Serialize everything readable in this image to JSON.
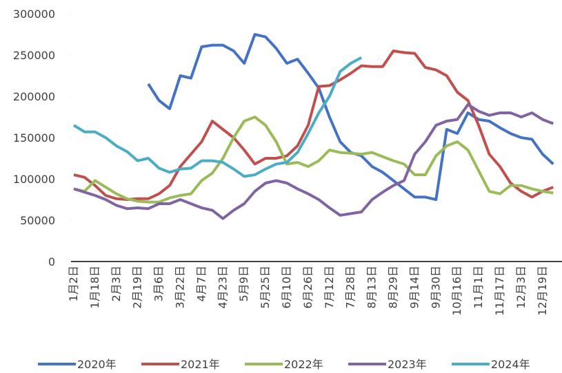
{
  "chart_data": {
    "type": "line",
    "categories": [
      "1月2日",
      null,
      "1月18日",
      null,
      "2月3日",
      null,
      "2月19日",
      null,
      "3月6日",
      null,
      "3月22日",
      null,
      "4月7日",
      null,
      "4月23日",
      null,
      "5月9日",
      null,
      "5月25日",
      null,
      "6月10日",
      null,
      "6月26日",
      null,
      "7月12日",
      null,
      "7月28日",
      null,
      "8月13日",
      null,
      "8月29日",
      null,
      "9月14日",
      null,
      "9月30日",
      null,
      "10月16日",
      null,
      "11月1日",
      null,
      "11月17日",
      null,
      "12月3日",
      null,
      "12月19日",
      null
    ],
    "ylim": [
      0,
      300000
    ],
    "yticks": [
      0,
      50000,
      100000,
      150000,
      200000,
      250000,
      300000
    ],
    "legend": "bottom",
    "series": [
      {
        "name": "2020年",
        "color": "#4472c4",
        "values": [
          null,
          null,
          null,
          null,
          null,
          null,
          null,
          215000,
          195000,
          185000,
          225000,
          222000,
          260000,
          262000,
          262000,
          255000,
          240000,
          275000,
          272000,
          258000,
          240000,
          245000,
          228000,
          210000,
          175000,
          145000,
          132000,
          128000,
          115000,
          108000,
          98000,
          88000,
          78000,
          78000,
          75000,
          160000,
          155000,
          180000,
          172000,
          170000,
          162000,
          155000,
          150000,
          148000,
          130000,
          118000
        ]
      },
      {
        "name": "2021年",
        "color": "#c0504d",
        "values": [
          105000,
          102000,
          92000,
          80000,
          76000,
          75000,
          76000,
          76000,
          82000,
          92000,
          115000,
          130000,
          145000,
          170000,
          160000,
          150000,
          135000,
          118000,
          125000,
          125000,
          128000,
          140000,
          165000,
          212000,
          213000,
          220000,
          228000,
          237000,
          236000,
          236000,
          255000,
          253000,
          252000,
          235000,
          232000,
          225000,
          205000,
          195000,
          165000,
          130000,
          115000,
          95000,
          85000,
          78000,
          85000,
          90000
        ]
      },
      {
        "name": "2022年",
        "color": "#9bbb59",
        "values": [
          88000,
          85000,
          98000,
          90000,
          82000,
          76000,
          73000,
          72000,
          72000,
          77000,
          80000,
          82000,
          98000,
          107000,
          125000,
          150000,
          170000,
          175000,
          165000,
          145000,
          118000,
          120000,
          115000,
          122000,
          135000,
          132000,
          131000,
          130000,
          132000,
          127000,
          122000,
          118000,
          105000,
          105000,
          128000,
          140000,
          145000,
          135000,
          110000,
          85000,
          82000,
          92000,
          92000,
          88000,
          85000,
          83000
        ]
      },
      {
        "name": "2023年",
        "color": "#8064a2",
        "values": [
          88000,
          84000,
          80000,
          75000,
          68000,
          64000,
          65000,
          64000,
          70000,
          70000,
          75000,
          70000,
          65000,
          62000,
          52000,
          62000,
          70000,
          85000,
          95000,
          98000,
          95000,
          88000,
          82000,
          75000,
          65000,
          56000,
          58000,
          60000,
          75000,
          84000,
          92000,
          98000,
          130000,
          145000,
          165000,
          170000,
          172000,
          190000,
          182000,
          177000,
          180000,
          180000,
          175000,
          180000,
          172000,
          167000
        ]
      },
      {
        "name": "2024年",
        "color": "#4bacc6",
        "values": [
          165000,
          157000,
          157000,
          150000,
          140000,
          133000,
          122000,
          125000,
          113000,
          108000,
          112000,
          113000,
          122000,
          122000,
          120000,
          112000,
          103000,
          105000,
          112000,
          118000,
          120000,
          132000,
          155000,
          180000,
          200000,
          230000,
          240000,
          247000,
          null,
          null,
          null,
          null,
          null,
          null,
          null,
          null,
          null,
          null,
          null,
          null,
          null,
          null,
          null,
          null,
          null,
          null
        ]
      }
    ]
  }
}
